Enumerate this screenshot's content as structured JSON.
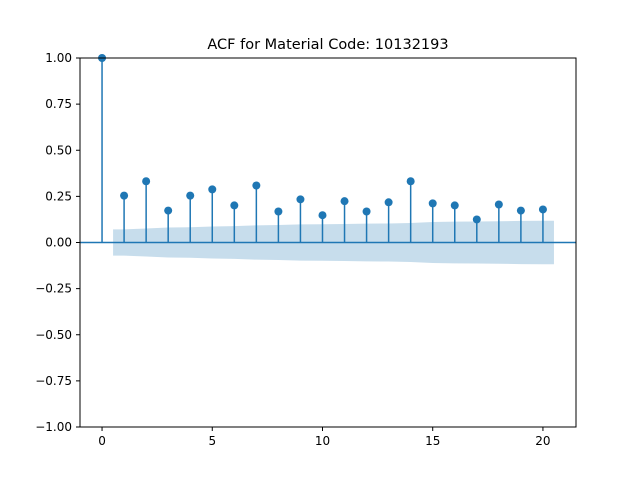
{
  "chart_data": {
    "type": "stem",
    "title": "ACF for Material Code: 10132193",
    "xlabel": "",
    "ylabel": "",
    "xlim": [
      -1,
      21.5
    ],
    "ylim": [
      -1.0,
      1.0
    ],
    "x_ticks": [
      0,
      5,
      10,
      15,
      20
    ],
    "x_tick_labels": [
      "0",
      "5",
      "10",
      "15",
      "20"
    ],
    "y_ticks": [
      1.0,
      0.75,
      0.5,
      0.25,
      0.0,
      -0.25,
      -0.5,
      -0.75,
      -1.0
    ],
    "y_tick_labels": [
      "1.00",
      "0.75",
      "0.50",
      "0.25",
      "0.00",
      "−0.25",
      "−0.50",
      "−0.75",
      "−1.00"
    ],
    "grid": false,
    "lags": [
      0,
      1,
      2,
      3,
      4,
      5,
      6,
      7,
      8,
      9,
      10,
      11,
      12,
      13,
      14,
      15,
      16,
      17,
      18,
      19,
      20
    ],
    "values": [
      1.0,
      0.254,
      0.332,
      0.173,
      0.254,
      0.288,
      0.201,
      0.309,
      0.168,
      0.234,
      0.148,
      0.224,
      0.168,
      0.218,
      0.332,
      0.212,
      0.201,
      0.125,
      0.206,
      0.173,
      0.179
    ],
    "confidence_band": {
      "lags": [
        0.5,
        1,
        2,
        3,
        4,
        5,
        6,
        7,
        8,
        9,
        10,
        11,
        12,
        13,
        14,
        15,
        16,
        17,
        18,
        19,
        20,
        20.5
      ],
      "upper": [
        0.071,
        0.071,
        0.076,
        0.081,
        0.083,
        0.087,
        0.089,
        0.093,
        0.095,
        0.098,
        0.099,
        0.1,
        0.102,
        0.103,
        0.106,
        0.111,
        0.113,
        0.114,
        0.115,
        0.117,
        0.118,
        0.118
      ],
      "lower": [
        -0.071,
        -0.071,
        -0.076,
        -0.081,
        -0.083,
        -0.087,
        -0.089,
        -0.093,
        -0.095,
        -0.098,
        -0.099,
        -0.1,
        -0.102,
        -0.103,
        -0.106,
        -0.111,
        -0.113,
        -0.114,
        -0.115,
        -0.117,
        -0.118,
        -0.118
      ]
    },
    "colors": {
      "stem": "#1f77b4",
      "band": "#1f77b4",
      "axis": "#000000"
    }
  }
}
